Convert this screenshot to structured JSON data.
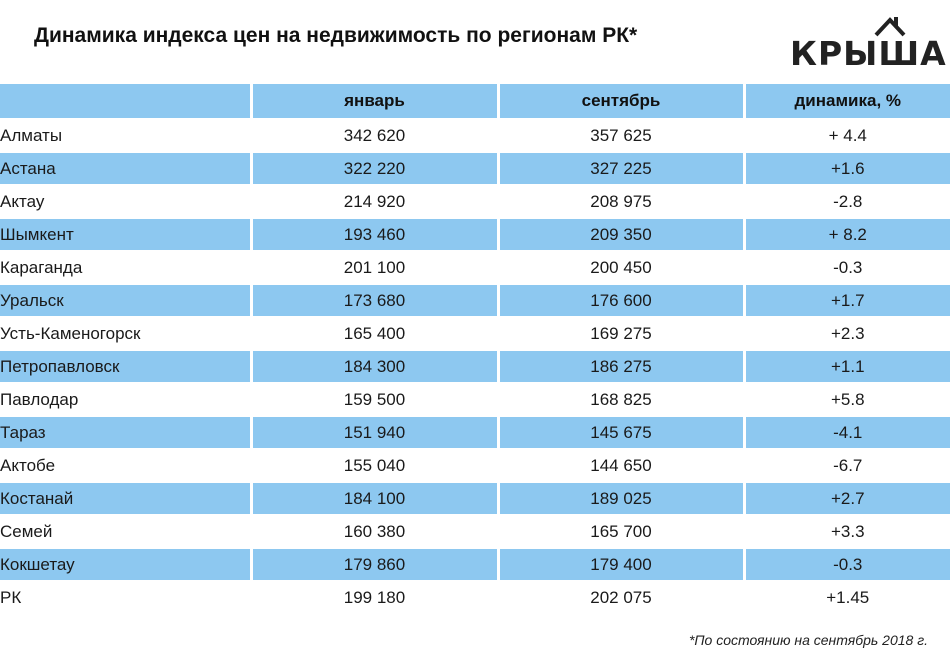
{
  "title": "Динамика индекса цен на недвижимость по регионам РК*",
  "logo": {
    "text": "КРЫША",
    "icon": "house-roof-icon"
  },
  "colors": {
    "row_shade": "#8dc8f0",
    "text": "#1a1a1a"
  },
  "table": {
    "headers": [
      "",
      "январь",
      "сентябрь",
      "динамика, %"
    ],
    "rows": [
      {
        "region": "Алматы",
        "jan": "342 620",
        "sep": "357 625",
        "change": "+ 4.4"
      },
      {
        "region": "Астана",
        "jan": "322 220",
        "sep": "327 225",
        "change": "+1.6"
      },
      {
        "region": "Актау",
        "jan": "214 920",
        "sep": "208 975",
        "change": "-2.8"
      },
      {
        "region": "Шымкент",
        "jan": "193 460",
        "sep": "209 350",
        "change": "+ 8.2"
      },
      {
        "region": "Караганда",
        "jan": "201 100",
        "sep": "200 450",
        "change": "-0.3"
      },
      {
        "region": "Уральск",
        "jan": "173 680",
        "sep": "176 600",
        "change": "+1.7"
      },
      {
        "region": "Усть-Каменогорск",
        "jan": "165 400",
        "sep": "169 275",
        "change": "+2.3"
      },
      {
        "region": "Петропавловск",
        "jan": "184 300",
        "sep": "186 275",
        "change": "+1.1"
      },
      {
        "region": "Павлодар",
        "jan": "159 500",
        "sep": "168 825",
        "change": "+5.8"
      },
      {
        "region": "Тараз",
        "jan": "151 940",
        "sep": "145 675",
        "change": "-4.1"
      },
      {
        "region": "Актобе",
        "jan": "155 040",
        "sep": "144 650",
        "change": "-6.7"
      },
      {
        "region": "Костанай",
        "jan": "184 100",
        "sep": "189 025",
        "change": "+2.7"
      },
      {
        "region": "Семей",
        "jan": "160 380",
        "sep": "165 700",
        "change": "+3.3"
      },
      {
        "region": "Кокшетау",
        "jan": "179 860",
        "sep": "179 400",
        "change": "-0.3"
      },
      {
        "region": "РК",
        "jan": "199 180",
        "sep": "202 075",
        "change": "+1.45"
      }
    ]
  },
  "footnote": "*По состоянию на сентябрь 2018 г."
}
